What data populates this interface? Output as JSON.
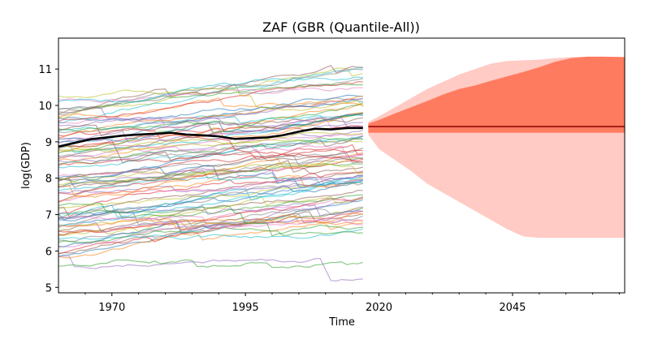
{
  "chart_data": {
    "type": "line",
    "title": "ZAF (GBR (Quantile-All))",
    "xlabel": "Time",
    "ylabel": "log(GDP)",
    "xlim": [
      1960,
      2066
    ],
    "ylim": [
      4.85,
      11.85
    ],
    "x_ticks": [
      1970,
      1995,
      2020,
      2045
    ],
    "x_tick_labels": [
      "1970",
      "1995",
      "2020",
      "2045"
    ],
    "y_ticks": [
      5,
      6,
      7,
      8,
      9,
      10,
      11
    ],
    "y_tick_labels": [
      "5",
      "6",
      "7",
      "8",
      "9",
      "10",
      "11"
    ],
    "grid": false,
    "legend": "none",
    "history_range": [
      1960,
      2017
    ],
    "background_series_count": 90,
    "series": [
      {
        "role": "target-history",
        "color": "#000000",
        "x": [
          1960,
          1963,
          1966,
          1969,
          1972,
          1975,
          1978,
          1981,
          1984,
          1987,
          1990,
          1993,
          1996,
          1999,
          2002,
          2005,
          2008,
          2011,
          2014,
          2017
        ],
        "values": [
          8.87,
          8.97,
          9.07,
          9.12,
          9.17,
          9.2,
          9.22,
          9.25,
          9.2,
          9.18,
          9.15,
          9.08,
          9.1,
          9.12,
          9.18,
          9.28,
          9.36,
          9.34,
          9.38,
          9.38
        ]
      }
    ],
    "forecast": {
      "x": [
        2018,
        2020,
        2023,
        2026,
        2029,
        2032,
        2035,
        2038,
        2041,
        2044,
        2047,
        2050,
        2053,
        2056,
        2059,
        2062,
        2066
      ],
      "median": [
        9.42,
        9.42,
        9.42,
        9.42,
        9.42,
        9.42,
        9.42,
        9.42,
        9.42,
        9.42,
        9.42,
        9.42,
        9.42,
        9.42,
        9.42,
        9.42,
        9.42
      ],
      "inner_upper": [
        9.5,
        9.6,
        9.78,
        9.95,
        10.12,
        10.3,
        10.45,
        10.55,
        10.68,
        10.8,
        10.92,
        11.05,
        11.2,
        11.3,
        11.34,
        11.34,
        11.33
      ],
      "inner_lower": [
        9.25,
        9.25,
        9.25,
        9.25,
        9.25,
        9.25,
        9.25,
        9.25,
        9.25,
        9.25,
        9.25,
        9.25,
        9.25,
        9.25,
        9.25,
        9.25,
        9.25
      ],
      "outer_upper": [
        9.55,
        9.7,
        9.95,
        10.2,
        10.45,
        10.65,
        10.85,
        11.0,
        11.15,
        11.22,
        11.24,
        11.26,
        11.3,
        11.33,
        11.34,
        11.34,
        11.33
      ],
      "outer_lower": [
        9.2,
        8.8,
        8.5,
        8.2,
        7.85,
        7.6,
        7.35,
        7.1,
        6.85,
        6.6,
        6.4,
        6.36,
        6.36,
        6.36,
        6.36,
        6.36,
        6.36
      ],
      "median_color": "#8b0000",
      "inner_color": "#ff7b60",
      "outer_color": "#ffcbc4"
    }
  }
}
